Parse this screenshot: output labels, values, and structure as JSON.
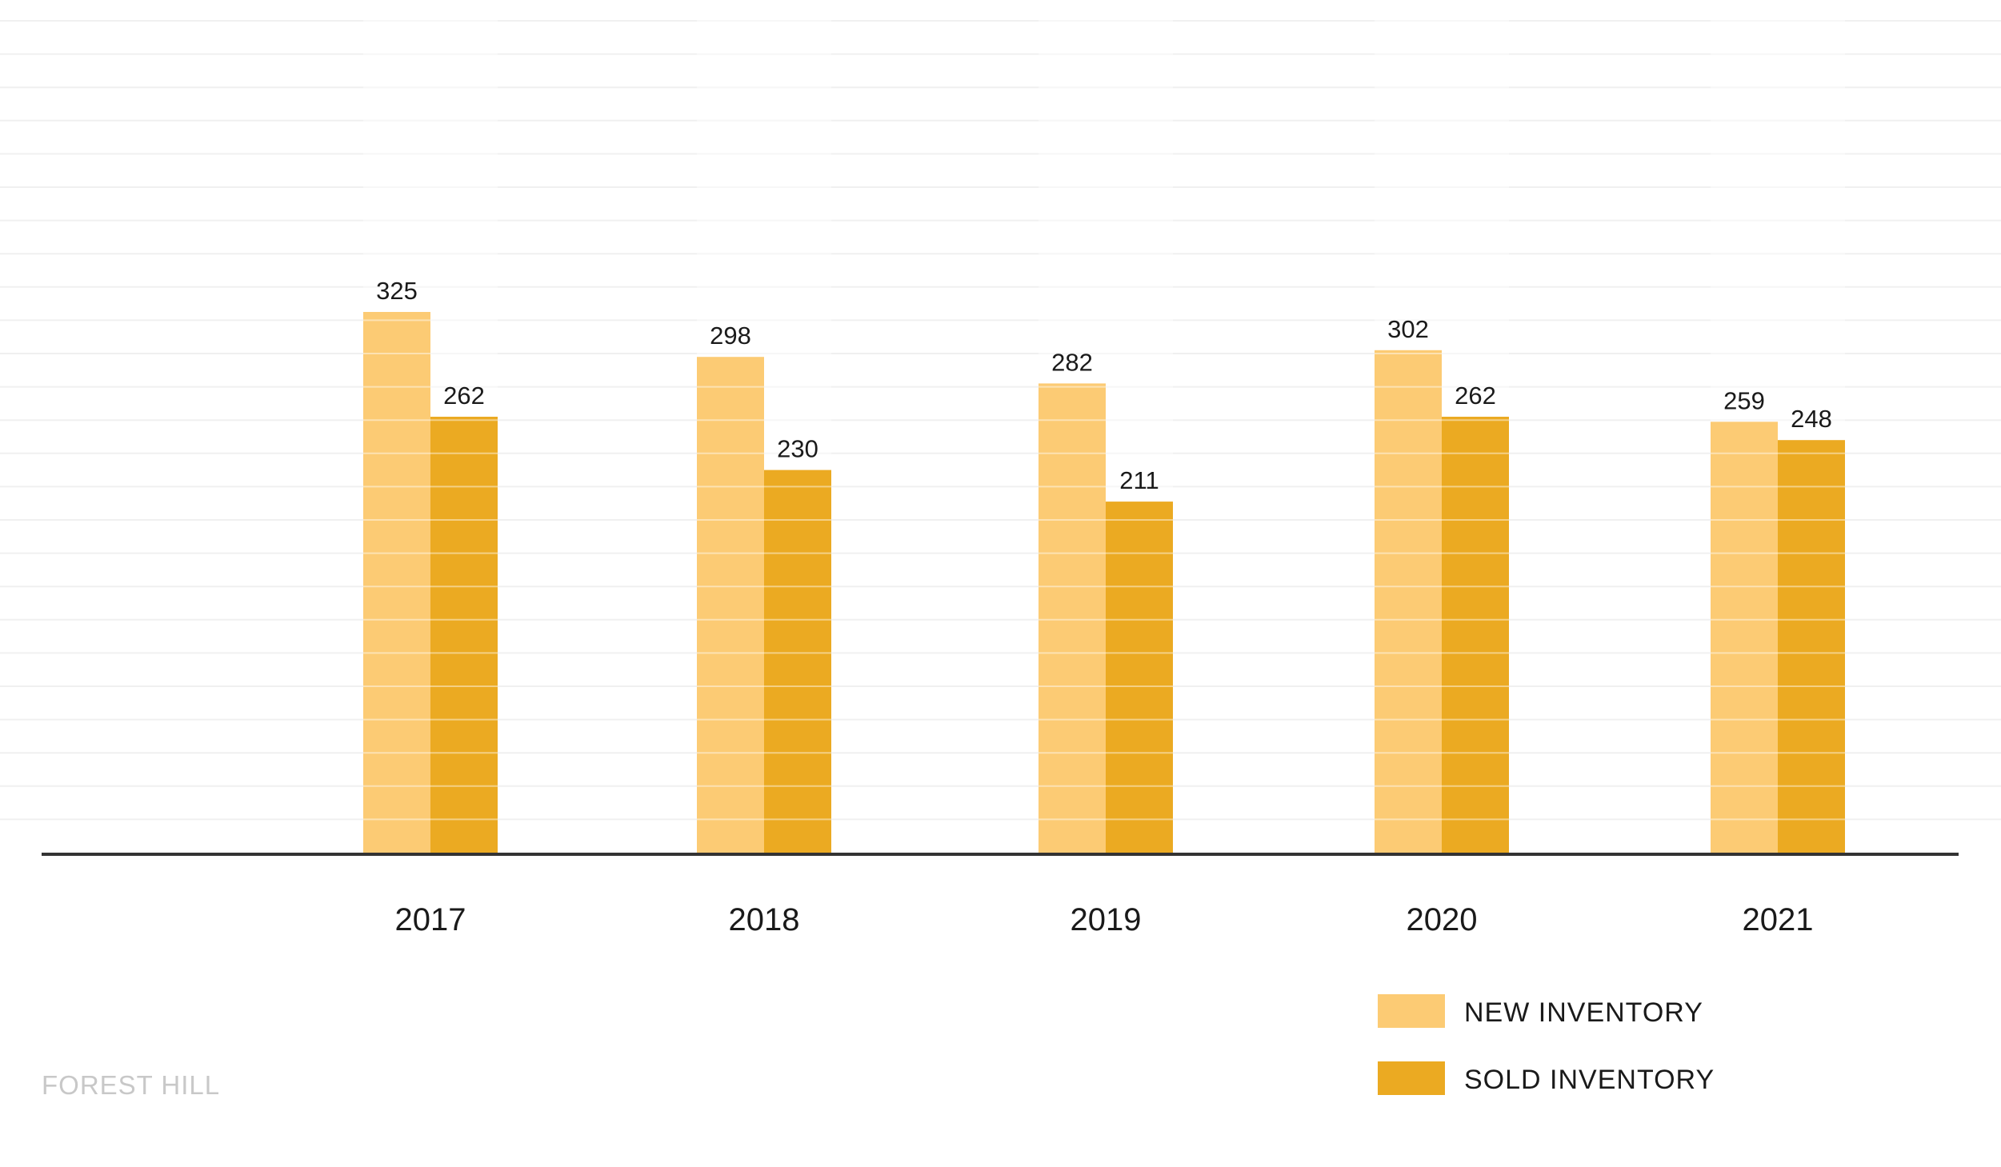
{
  "chart_data": {
    "type": "bar",
    "categories": [
      "2017",
      "2018",
      "2019",
      "2020",
      "2021"
    ],
    "series": [
      {
        "name": "NEW INVENTORY",
        "values": [
          325,
          298,
          282,
          302,
          259
        ],
        "color": "#FCCB74"
      },
      {
        "name": "SOLD INVENTORY",
        "values": [
          262,
          230,
          211,
          262,
          248
        ],
        "color": "#EBAA22"
      }
    ],
    "title": "",
    "xlabel": "",
    "ylabel": "",
    "ylim": [
      0,
      500
    ],
    "grid": true,
    "legend_position": "bottom-right",
    "colors": {
      "gridline": "#F0F0F0",
      "axis": "#333333",
      "region_label": "#C8C8C8"
    }
  },
  "region": "FOREST HILL"
}
